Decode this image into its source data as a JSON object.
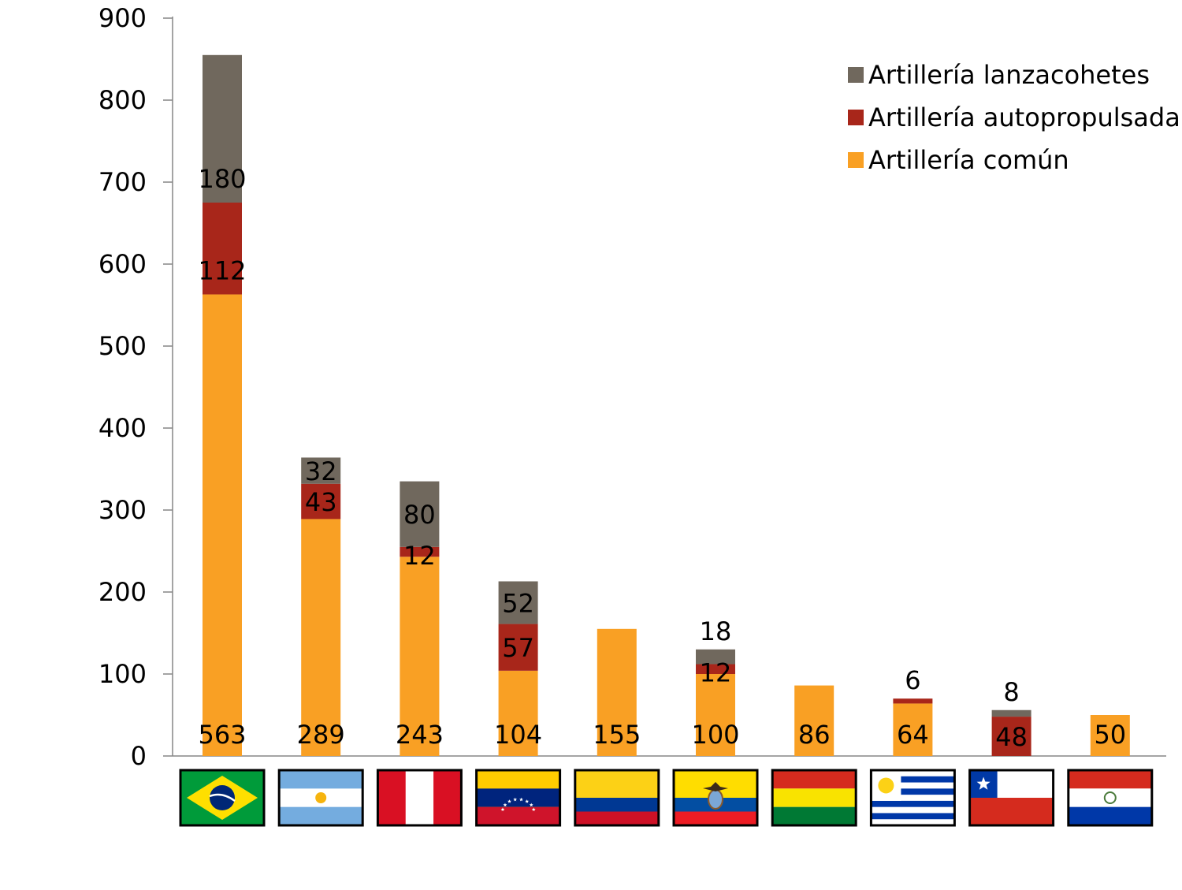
{
  "chart_data": {
    "type": "bar",
    "stacked": true,
    "title": "",
    "xlabel": "",
    "ylabel": "",
    "ylim": [
      0,
      900
    ],
    "yticks": [
      0,
      100,
      200,
      300,
      400,
      500,
      600,
      700,
      800,
      900
    ],
    "grid": false,
    "legend_position": "top-right",
    "categories": [
      "Brasil",
      "Argentina",
      "Perú",
      "Venezuela",
      "Colombia",
      "Ecuador",
      "Bolivia",
      "Uruguay",
      "Chile",
      "Paraguay"
    ],
    "category_icons": [
      "brazil-flag-icon",
      "argentina-flag-icon",
      "peru-flag-icon",
      "venezuela-flag-icon",
      "colombia-flag-icon",
      "ecuador-flag-icon",
      "bolivia-flag-icon",
      "uruguay-flag-icon",
      "chile-flag-icon",
      "paraguay-flag-icon"
    ],
    "series": [
      {
        "name": "Artillería común",
        "color": "#F9A024",
        "values": [
          563,
          289,
          243,
          104,
          155,
          100,
          86,
          64,
          0,
          50
        ]
      },
      {
        "name": "Artillería autopropulsada",
        "color": "#A8261A",
        "values": [
          112,
          43,
          12,
          57,
          0,
          12,
          0,
          6,
          48,
          0
        ]
      },
      {
        "name": "Artillería lanzacohetes",
        "color": "#70685D",
        "values": [
          180,
          32,
          80,
          52,
          0,
          18,
          0,
          0,
          8,
          0
        ]
      }
    ],
    "data_labels": [
      {
        "category": 0,
        "series": 0,
        "text": "563"
      },
      {
        "category": 0,
        "series": 1,
        "text": "112"
      },
      {
        "category": 0,
        "series": 2,
        "text": "180"
      },
      {
        "category": 1,
        "series": 0,
        "text": "289"
      },
      {
        "category": 1,
        "series": 1,
        "text": "43"
      },
      {
        "category": 1,
        "series": 2,
        "text": "32"
      },
      {
        "category": 2,
        "series": 0,
        "text": "243"
      },
      {
        "category": 2,
        "series": 1,
        "text": "12"
      },
      {
        "category": 2,
        "series": 2,
        "text": "80"
      },
      {
        "category": 3,
        "series": 0,
        "text": "104"
      },
      {
        "category": 3,
        "series": 1,
        "text": "57"
      },
      {
        "category": 3,
        "series": 2,
        "text": "52"
      },
      {
        "category": 4,
        "series": 0,
        "text": "155"
      },
      {
        "category": 5,
        "series": 0,
        "text": "100"
      },
      {
        "category": 5,
        "series": 1,
        "text": "12"
      },
      {
        "category": 5,
        "series": 2,
        "text": "18"
      },
      {
        "category": 6,
        "series": 0,
        "text": "86"
      },
      {
        "category": 7,
        "series": 0,
        "text": "64"
      },
      {
        "category": 7,
        "series": 1,
        "text": "6"
      },
      {
        "category": 8,
        "series": 1,
        "text": "48"
      },
      {
        "category": 8,
        "series": 2,
        "text": "8"
      },
      {
        "category": 9,
        "series": 0,
        "text": "50"
      }
    ],
    "legend": [
      "Artillería lanzacohetes",
      "Artillería autopropulsada",
      "Artillería común"
    ]
  }
}
